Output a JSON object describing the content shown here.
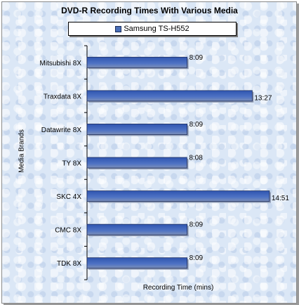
{
  "chart_data": {
    "type": "bar",
    "orientation": "horizontal",
    "title": "DVD-R Recording Times With Various Media",
    "xlabel": "Recording Time (mins)",
    "ylabel": "Media Brands",
    "categories": [
      "Mitsubishi 8X",
      "Traxdata 8X",
      "Datawrite 8X",
      "TY 8X",
      "SKC 4X",
      "CMC 8X",
      "TDK 8X"
    ],
    "series": [
      {
        "name": "Samsung TS-H552",
        "values": [
          8.15,
          13.45,
          8.15,
          8.133,
          14.85,
          8.15,
          8.15
        ],
        "labels": [
          "8:09",
          "13:27",
          "8:09",
          "8:08",
          "14:51",
          "8:09",
          "8:09"
        ]
      }
    ],
    "xlim": [
      0,
      16
    ],
    "bar_color": "#4a6fb8",
    "legend_position": "top",
    "grid": false
  }
}
